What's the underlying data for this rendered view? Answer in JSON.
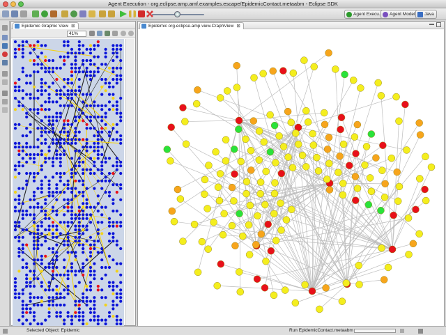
{
  "window": {
    "title": "Agent Execution - org.eclipse.amp.amf.examples.escape/EpidemicContact.metaabm - Eclipse SDK"
  },
  "perspectives": [
    {
      "label": "Agent Execu...",
      "active": true
    },
    {
      "label": "Agent Model...",
      "active": false
    },
    {
      "label": "Java",
      "active": false
    }
  ],
  "left_view": {
    "tab_label": "Epidemic Graphic View",
    "zoom": "41%"
  },
  "right_view": {
    "tab_label": "Epidemic org.eclipse.amp.view.CraphView"
  },
  "status": {
    "selected": "Selected Object: Epidemic",
    "run": "Run EpidemicContact.metaabm"
  },
  "colors": {
    "agent_blue": "#0a14d8",
    "link_yellow": "#f2d21a",
    "healthy": "#f4ee1e",
    "exposed": "#f7a51c",
    "infected": "#e8101a",
    "recovered": "#2ae23a",
    "edge_gray": "#bdbdbd"
  },
  "icons": [
    "run-icon",
    "pause-icon",
    "stop-icon",
    "restart-icon",
    "close-run-icon",
    "zoom-in-icon",
    "zoom-out-icon"
  ]
}
